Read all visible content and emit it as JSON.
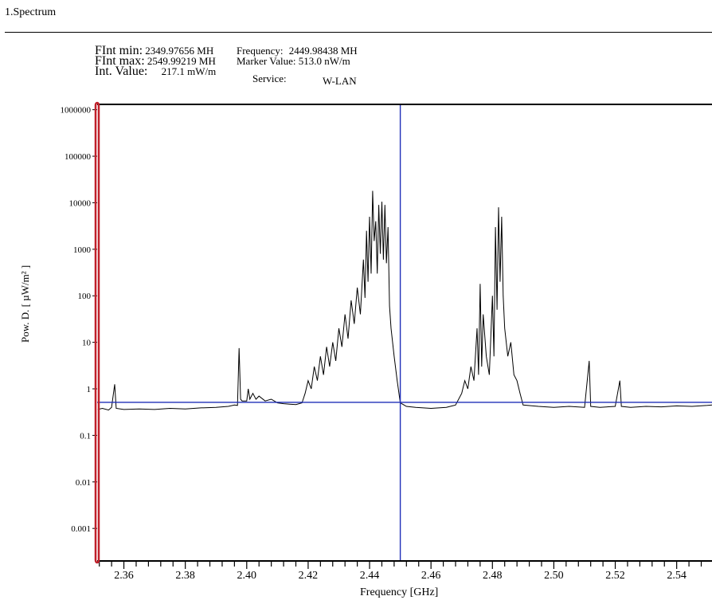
{
  "section": {
    "title": "1.Spectrum"
  },
  "info": {
    "fint_min_label": "FInt min:",
    "fint_min_value": "2349.97656 MH",
    "fint_max_label": "FInt max:",
    "fint_max_value": "2549.99219 MH",
    "int_value_label": "Int. Value:",
    "int_value_value": "217.1 mW/m",
    "frequency_label": "Frequency:",
    "frequency_value": "2449.98438 MH",
    "marker_label": "Marker Value:",
    "marker_value": "513.0  nW/m",
    "service_label": "Service:",
    "service_value": "W-LAN"
  },
  "chart_data": {
    "type": "line",
    "xlabel": "Frequency [GHz]",
    "ylabel": "Pow. D. [ µW/m² ]",
    "xlim": [
      2.3513,
      2.5515
    ],
    "ylim": [
      0.0002,
      1300000
    ],
    "yscale": "log",
    "x_ticks": [
      "2.36",
      "2.38",
      "2.40",
      "2.42",
      "2.44",
      "2.46",
      "2.48",
      "2.50",
      "2.52",
      "2.54"
    ],
    "y_ticks": [
      "0.001",
      "0.01",
      "0.1",
      "1",
      "10",
      "100",
      "1000",
      "10000",
      "100000",
      "1000000"
    ],
    "marker": {
      "x": 2.45,
      "y": 0.513
    },
    "colors": {
      "trace": "#000000",
      "marker": "#1f2fb8",
      "left_axis": "#c0202a",
      "frame": "#000000"
    },
    "series": [
      {
        "values": [
          [
            2.3515,
            0.36
          ],
          [
            2.353,
            0.38
          ],
          [
            2.355,
            0.35
          ],
          [
            2.356,
            0.4
          ],
          [
            2.357,
            1.25
          ],
          [
            2.3575,
            0.38
          ],
          [
            2.36,
            0.36
          ],
          [
            2.365,
            0.37
          ],
          [
            2.37,
            0.36
          ],
          [
            2.375,
            0.38
          ],
          [
            2.38,
            0.37
          ],
          [
            2.385,
            0.39
          ],
          [
            2.39,
            0.4
          ],
          [
            2.394,
            0.42
          ],
          [
            2.396,
            0.45
          ],
          [
            2.397,
            0.44
          ],
          [
            2.3975,
            7.5
          ],
          [
            2.398,
            0.6
          ],
          [
            2.3985,
            0.55
          ],
          [
            2.4,
            0.55
          ],
          [
            2.4005,
            1.0
          ],
          [
            2.401,
            0.6
          ],
          [
            2.402,
            0.8
          ],
          [
            2.403,
            0.6
          ],
          [
            2.404,
            0.7
          ],
          [
            2.406,
            0.55
          ],
          [
            2.408,
            0.6
          ],
          [
            2.41,
            0.5
          ],
          [
            2.412,
            0.48
          ],
          [
            2.414,
            0.47
          ],
          [
            2.416,
            0.46
          ],
          [
            2.418,
            0.5
          ],
          [
            2.419,
            0.8
          ],
          [
            2.42,
            1.5
          ],
          [
            2.421,
            1.0
          ],
          [
            2.422,
            3
          ],
          [
            2.423,
            1.5
          ],
          [
            2.424,
            5
          ],
          [
            2.425,
            2
          ],
          [
            2.426,
            8
          ],
          [
            2.427,
            3
          ],
          [
            2.428,
            10
          ],
          [
            2.429,
            4
          ],
          [
            2.43,
            20
          ],
          [
            2.431,
            8
          ],
          [
            2.432,
            40
          ],
          [
            2.433,
            12
          ],
          [
            2.434,
            80
          ],
          [
            2.435,
            25
          ],
          [
            2.436,
            150
          ],
          [
            2.437,
            40
          ],
          [
            2.438,
            600
          ],
          [
            2.4385,
            90
          ],
          [
            2.439,
            2500
          ],
          [
            2.4395,
            200
          ],
          [
            2.44,
            5000
          ],
          [
            2.4405,
            300
          ],
          [
            2.441,
            18000
          ],
          [
            2.4415,
            1500
          ],
          [
            2.442,
            4000
          ],
          [
            2.4425,
            300
          ],
          [
            2.443,
            9000
          ],
          [
            2.4435,
            800
          ],
          [
            2.444,
            10500
          ],
          [
            2.4445,
            600
          ],
          [
            2.445,
            9000
          ],
          [
            2.4455,
            500
          ],
          [
            2.446,
            3000
          ],
          [
            2.4465,
            60
          ],
          [
            2.447,
            20
          ],
          [
            2.448,
            5
          ],
          [
            2.449,
            1.5
          ],
          [
            2.45,
            0.5
          ],
          [
            2.452,
            0.42
          ],
          [
            2.455,
            0.4
          ],
          [
            2.46,
            0.38
          ],
          [
            2.465,
            0.4
          ],
          [
            2.468,
            0.45
          ],
          [
            2.47,
            0.8
          ],
          [
            2.471,
            1.5
          ],
          [
            2.472,
            1.0
          ],
          [
            2.473,
            3
          ],
          [
            2.474,
            1.5
          ],
          [
            2.475,
            20
          ],
          [
            2.4755,
            2
          ],
          [
            2.476,
            180
          ],
          [
            2.4765,
            3
          ],
          [
            2.477,
            40
          ],
          [
            2.478,
            5
          ],
          [
            2.479,
            2
          ],
          [
            2.48,
            100
          ],
          [
            2.4805,
            5
          ],
          [
            2.481,
            3000
          ],
          [
            2.4815,
            50
          ],
          [
            2.482,
            8000
          ],
          [
            2.4825,
            200
          ],
          [
            2.483,
            5000
          ],
          [
            2.4835,
            100
          ],
          [
            2.484,
            20
          ],
          [
            2.485,
            5
          ],
          [
            2.486,
            10
          ],
          [
            2.487,
            2
          ],
          [
            2.488,
            1.5
          ],
          [
            2.489,
            0.8
          ],
          [
            2.49,
            0.45
          ],
          [
            2.495,
            0.42
          ],
          [
            2.5,
            0.4
          ],
          [
            2.505,
            0.42
          ],
          [
            2.51,
            0.4
          ],
          [
            2.5115,
            4
          ],
          [
            2.512,
            0.42
          ],
          [
            2.515,
            0.4
          ],
          [
            2.52,
            0.42
          ],
          [
            2.5215,
            1.5
          ],
          [
            2.522,
            0.42
          ],
          [
            2.525,
            0.4
          ],
          [
            2.53,
            0.42
          ],
          [
            2.535,
            0.41
          ],
          [
            2.54,
            0.43
          ],
          [
            2.545,
            0.42
          ],
          [
            2.55,
            0.44
          ],
          [
            2.5515,
            0.45
          ]
        ]
      }
    ]
  }
}
